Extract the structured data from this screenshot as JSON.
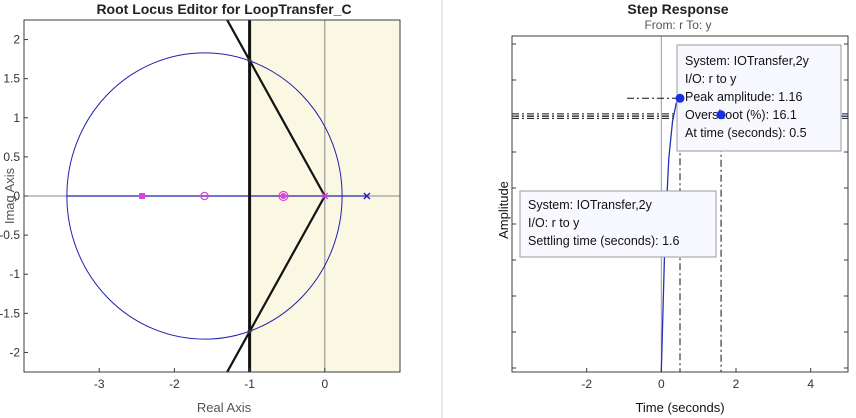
{
  "chart_data": [
    {
      "type": "root-locus",
      "title": "Root Locus Editor for LoopTransfer_C",
      "xlabel": "Real Axis",
      "ylabel": "Imag Axis",
      "xlim": [
        -4,
        1
      ],
      "ylim": [
        -2.25,
        2.25
      ],
      "xticks": [
        -3,
        -2,
        -1,
        0
      ],
      "yticks": [
        -2,
        -1.5,
        -1,
        -0.5,
        0,
        0.5,
        1,
        1.5,
        2
      ],
      "xtick_labels": [
        "-3",
        "-2",
        "-1",
        "0"
      ],
      "ytick_labels": [
        "-2",
        "-1.5",
        "-1",
        "-0.5",
        "0",
        "0.5",
        "1",
        "1.5",
        "2"
      ],
      "shaded_region": {
        "x_from": -1,
        "x_to": 1,
        "color": "#faf7e2"
      },
      "damping_lines": [
        {
          "from": [
            0,
            0
          ],
          "to": [
            -1.5,
            2.6
          ]
        },
        {
          "from": [
            0,
            0
          ],
          "to": [
            -1.5,
            -2.6
          ]
        }
      ],
      "settling_boundary_x": -1,
      "circle": {
        "center": [
          -1.6,
          0
        ],
        "radius": 1.83,
        "color": "#2222aa"
      },
      "real_axis_locus": {
        "from": -3.43,
        "to": 0.56,
        "color": "#2222aa"
      },
      "poles": [
        {
          "x": 0,
          "y": 0,
          "color": "#e040e0"
        },
        {
          "x": 0.56,
          "y": 0,
          "color": "#2222cc"
        }
      ],
      "zeros": [
        {
          "x": -1.6,
          "y": 0,
          "color": "#e040e0"
        }
      ],
      "closed_loop_poles": [
        {
          "x": -2.43,
          "y": 0
        },
        {
          "x": -0.55,
          "y": 0
        }
      ],
      "intersections": [
        {
          "x": -1,
          "y": 1.73
        },
        {
          "x": -1,
          "y": -1.73
        }
      ]
    },
    {
      "type": "line",
      "title": "Step Response",
      "subtitle": "From: r  To: y",
      "xlabel": "Time (seconds)",
      "ylabel": "Amplitude",
      "xlim": [
        -4,
        5
      ],
      "xticks": [
        -2,
        0,
        2,
        4
      ],
      "xtick_labels": [
        "-2",
        "0",
        "2",
        "4"
      ],
      "ylim": [
        -1.3,
        1.72
      ],
      "series": [
        {
          "x": [
            0,
            0.1,
            0.2,
            0.3,
            0.4,
            0.5,
            0.6,
            0.8,
            1.0,
            1.2,
            1.4,
            1.6,
            1.8,
            2.0,
            2.5,
            3.0,
            3.5,
            4.0,
            5.0
          ],
          "y": [
            -1.3,
            -0.05,
            0.62,
            0.95,
            1.12,
            1.16,
            1.14,
            1.085,
            1.05,
            1.03,
            1.02,
            1.012,
            1.007,
            1.004,
            1.001,
            1.0,
            1.0,
            1.0,
            1.0
          ],
          "color": "#2233bb"
        }
      ],
      "steady_state": 1.0,
      "settling_band": [
        0.98,
        1.02
      ],
      "peak_marker": {
        "x": 0.5,
        "y": 1.16
      },
      "settling_marker": {
        "x": 1.6,
        "y": 1.012
      },
      "datatips": [
        {
          "lines": [
            "System:  IOTransfer,2y",
            "I/O:  r  to  y",
            "Peak amplitude:  1.16",
            "Overshoot  (%):  16.1",
            "At time  (seconds):  0.5"
          ]
        },
        {
          "lines": [
            "System:  IOTransfer,2y",
            "I/O:  r  to  y",
            "Settling time  (seconds):  1.6"
          ]
        }
      ]
    }
  ]
}
